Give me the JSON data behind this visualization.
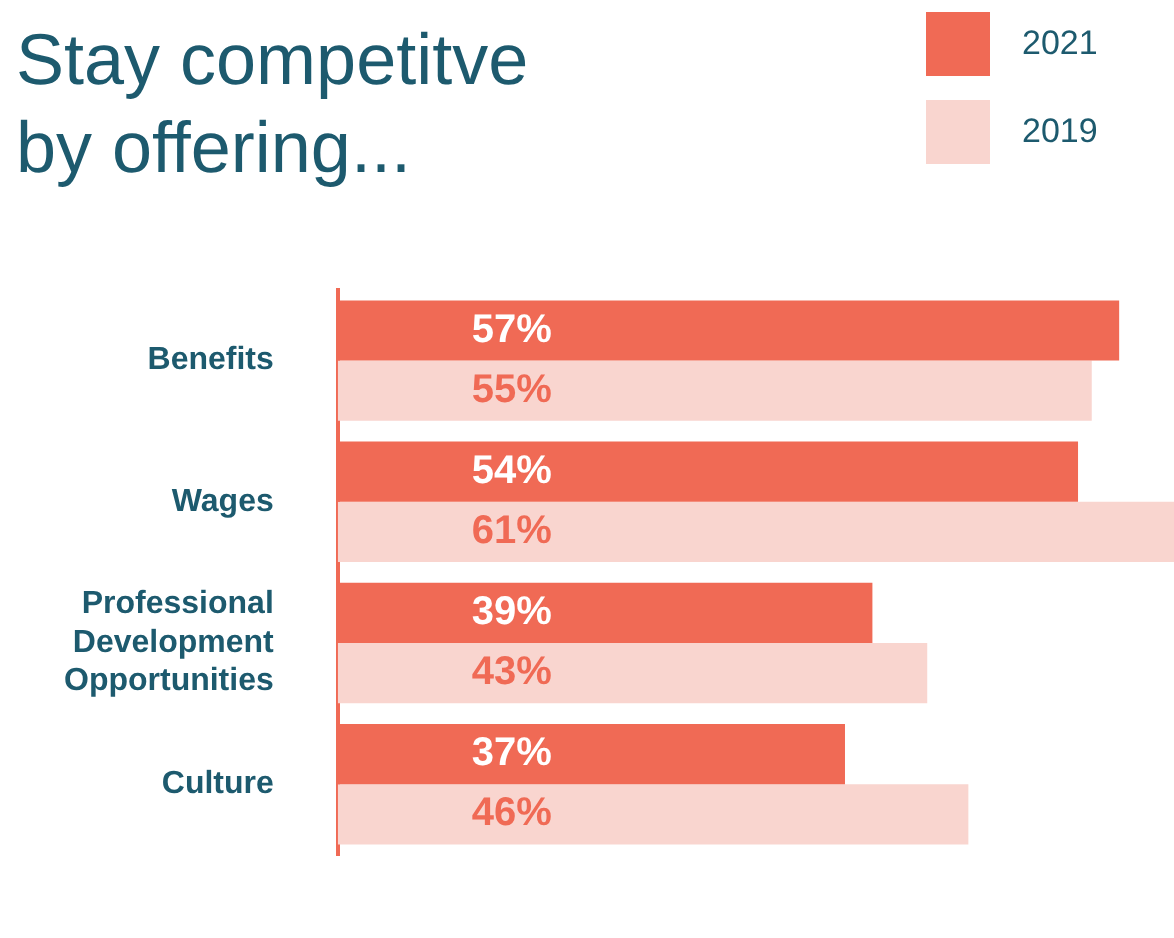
{
  "chart_data": {
    "type": "bar",
    "orientation": "horizontal",
    "title": "Stay competitve\nby offering...",
    "categories": [
      "Benefits",
      "Wages",
      "Professional Development Opportunities",
      "Culture"
    ],
    "series": [
      {
        "name": "2021",
        "color": "#f06a55",
        "values": [
          57,
          54,
          39,
          37
        ],
        "value_labels": [
          "57%",
          "54%",
          "39%",
          "37%"
        ]
      },
      {
        "name": "2019",
        "color": "#f9d5cf",
        "values": [
          55,
          61,
          43,
          46
        ],
        "value_labels": [
          "55%",
          "61%",
          "43%",
          "46%"
        ]
      }
    ],
    "legend": "top right",
    "tick_labels": "y"
  }
}
